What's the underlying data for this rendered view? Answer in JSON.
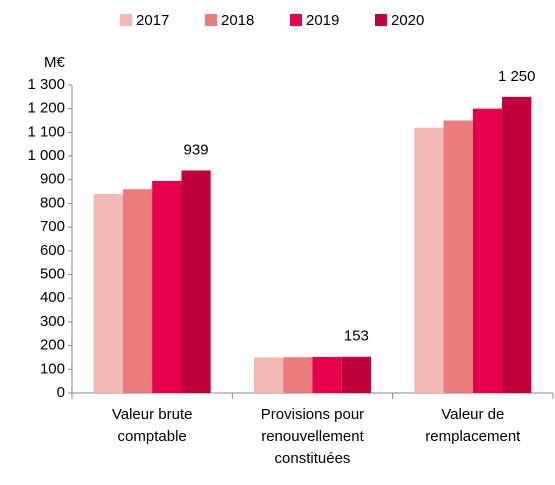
{
  "chart_data": {
    "type": "bar",
    "y_unit": "M€",
    "categories": [
      "Valeur brute\ncomptable",
      "Provisions pour\nrenouvellement\nconstituées",
      "Valeur de\nremplacement"
    ],
    "series": [
      {
        "name": "2017",
        "color": "#f4b9b4",
        "values": [
          840,
          150,
          1120
        ]
      },
      {
        "name": "2018",
        "color": "#ec7b7b",
        "values": [
          860,
          151,
          1150
        ]
      },
      {
        "name": "2019",
        "color": "#e6004c",
        "values": [
          895,
          152,
          1200
        ]
      },
      {
        "name": "2020",
        "color": "#c0003c",
        "values": [
          939,
          153,
          1250
        ],
        "value_labels": [
          "939",
          "153",
          "1 250"
        ]
      }
    ],
    "ylim": [
      0,
      1300
    ],
    "yticks": [
      0,
      100,
      200,
      300,
      400,
      500,
      600,
      700,
      800,
      900,
      {
        "value": 1000,
        "label": "1 000"
      },
      {
        "value": 1100,
        "label": "1 100"
      },
      {
        "value": 1200,
        "label": "1 200"
      },
      {
        "value": 1300,
        "label": "1 300"
      }
    ],
    "grid": false,
    "legend": "top"
  }
}
